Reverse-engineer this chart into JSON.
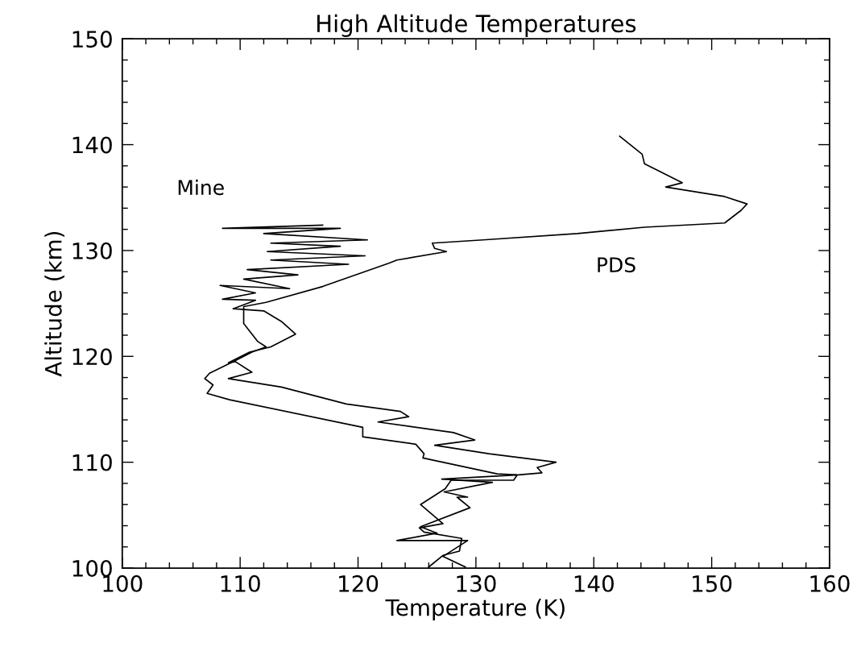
{
  "chart_data": {
    "type": "line",
    "title": "High Altitude Temperatures",
    "xlabel": "Temperature (K)",
    "ylabel": "Altitude (km)",
    "xlim": [
      100,
      160
    ],
    "xticks": [
      100,
      110,
      120,
      130,
      140,
      150,
      160
    ],
    "ylim": [
      100,
      150
    ],
    "yticks": [
      100,
      110,
      120,
      130,
      140,
      150
    ],
    "grid": false,
    "legend": false,
    "marker": "none",
    "line_style": "solid",
    "series": [
      {
        "name": "Mine",
        "color": "#000000",
        "x": [
          129.1,
          127.2,
          129.3,
          123.3,
          126.7,
          125.3,
          129.5,
          128.4,
          129.3,
          127.3,
          131.4,
          127.1,
          133.6,
          135.6,
          135.2,
          136.8,
          131.1,
          126.5,
          129.9,
          128.1,
          121.7,
          124.3,
          123.6,
          119.0,
          113.5,
          109.0,
          111.0,
          109.6,
          109.0,
          110.8,
          112.6,
          114.7,
          113.5,
          112.0,
          109.4,
          111.3,
          108.5,
          111.3,
          108.3,
          114.2,
          110.3,
          114.9,
          110.6,
          119.2,
          112.6,
          120.6,
          112.3,
          118.5,
          112.6,
          120.8,
          112.0,
          118.5,
          108.5,
          117.0
        ],
        "values": [
          100.1,
          101.1,
          102.6,
          102.6,
          103.3,
          103.9,
          105.7,
          106.7,
          106.7,
          107.2,
          108.1,
          108.4,
          108.8,
          109.0,
          109.5,
          110.0,
          110.8,
          111.6,
          112.1,
          112.8,
          113.8,
          114.3,
          114.8,
          115.5,
          117.1,
          117.9,
          118.5,
          119.5,
          119.4,
          120.4,
          120.9,
          122.1,
          123.3,
          124.3,
          124.5,
          125.3,
          125.4,
          126.0,
          126.7,
          126.4,
          127.3,
          127.7,
          128.2,
          128.7,
          129.1,
          129.5,
          129.9,
          130.4,
          130.7,
          131.0,
          131.6,
          132.1,
          132.1,
          132.4
        ]
      },
      {
        "name": "PDS",
        "color": "#000000",
        "x": [
          142.2,
          144.1,
          144.3,
          147.5,
          146.1,
          151.1,
          153.0,
          152.5,
          151.1,
          144.3,
          138.6,
          130.6,
          126.3,
          126.5,
          127.5,
          123.3,
          122.6,
          117.0,
          112.2,
          110.3,
          110.3,
          110.3,
          111.5,
          112.2,
          111.0,
          109.6,
          107.4,
          107.0,
          107.7,
          107.2,
          109.1,
          120.4,
          120.4,
          124.9,
          125.6,
          125.5,
          131.8,
          133.5,
          133.2,
          127.9,
          127.4,
          125.3,
          127.2,
          125.2,
          125.6,
          128.8,
          128.6,
          127.2,
          126.0
        ],
        "values": [
          140.8,
          139.1,
          138.2,
          136.4,
          136.0,
          135.1,
          134.4,
          133.8,
          132.6,
          132.2,
          131.6,
          131.0,
          130.7,
          130.2,
          129.9,
          129.1,
          128.8,
          126.6,
          125.1,
          124.7,
          124.0,
          123.1,
          121.4,
          120.9,
          120.4,
          119.6,
          118.4,
          117.9,
          117.3,
          116.5,
          115.9,
          113.3,
          112.4,
          111.7,
          110.8,
          110.4,
          108.9,
          108.8,
          108.3,
          108.3,
          107.5,
          106.0,
          104.2,
          103.8,
          103.4,
          102.8,
          101.6,
          101.2,
          100.1
        ]
      }
    ]
  }
}
